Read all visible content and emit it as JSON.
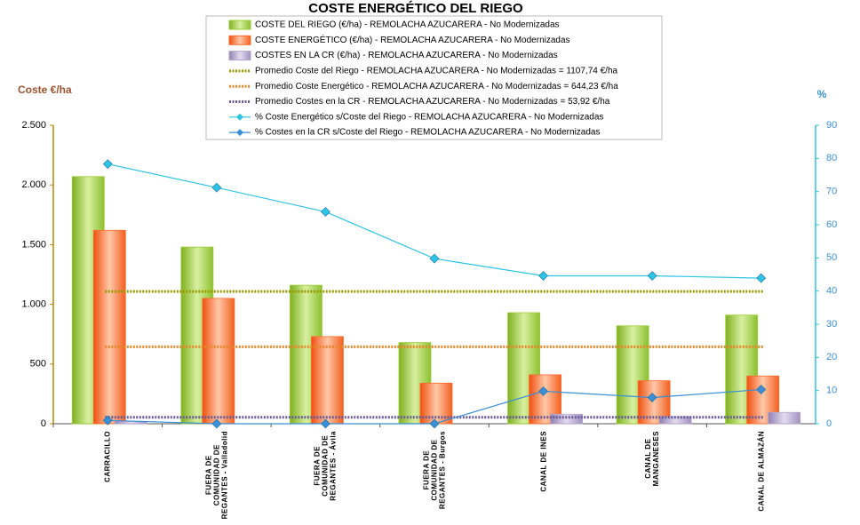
{
  "chart_data": {
    "type": "bar",
    "title": "COSTE ENERGÉTICO DEL RIEGO",
    "y_label": "Coste €/ha",
    "y2_label": "%",
    "categories": [
      "CARRACILLO",
      "FUERA DE\nCOMUNIDAD DE\nREGANTES - Valladolid",
      "FUERA DE\nCOMUNIDAD DE\nREGANTES - Ávila",
      "FUERA DE\nCOMUNIDAD DE\nREGANTES - Burgos",
      "CANAL DE INES",
      "CANAL DE\nMANGANESES",
      "CANAL DE ALMAZÁN"
    ],
    "ylim": [
      0,
      2500
    ],
    "yticks": [
      0,
      500,
      {
        "value": 1000,
        "label": "1.000"
      },
      {
        "value": 1500,
        "label": "1.500"
      },
      {
        "value": 2000,
        "label": "2.000"
      },
      {
        "value": 2500,
        "label": "2.500"
      }
    ],
    "y2lim": [
      0,
      90
    ],
    "y2ticks": [
      0,
      10,
      20,
      30,
      40,
      50,
      60,
      70,
      80,
      90
    ],
    "series": [
      {
        "name": "COSTE DEL RIEGO (€/ha) - REMOLACHA AZUCARERA - No Modernizadas",
        "type": "bar",
        "color": "#9acd32",
        "values": [
          2070,
          1480,
          1160,
          680,
          930,
          820,
          910
        ]
      },
      {
        "name": "COSTE ENERGÉTICO (€/ha) - REMOLACHA AZUCARERA - No Modernizadas",
        "type": "bar",
        "color": "#ff6a2a",
        "values": [
          1620,
          1050,
          730,
          340,
          410,
          360,
          400
        ]
      },
      {
        "name": "COSTES EN LA CR (€/ha) - REMOLACHA AZUCARERA - No Modernizadas",
        "type": "bar",
        "color": "#b4a6cc",
        "values": [
          20,
          0,
          0,
          0,
          80,
          60,
          95
        ]
      },
      {
        "name": "Promedio Coste del Riego - REMOLACHA AZUCARERA - No Modernizadas = 1107,74 €/ha",
        "type": "line",
        "color": "#9a9a00",
        "values": [
          1107.74,
          1107.74,
          1107.74,
          1107.74,
          1107.74,
          1107.74,
          1107.74
        ]
      },
      {
        "name": "Promedio Coste Energético - REMOLACHA AZUCARERA - No Modernizadas = 644,23 €/ha",
        "type": "line",
        "color": "#e8862a",
        "values": [
          644.23,
          644.23,
          644.23,
          644.23,
          644.23,
          644.23,
          644.23
        ]
      },
      {
        "name": "Promedio Costes en la CR - REMOLACHA AZUCARERA - No Modernizadas = 53,92 €/ha",
        "type": "line",
        "color": "#6a5a9a",
        "values": [
          53.92,
          53.92,
          53.92,
          53.92,
          53.92,
          53.92,
          53.92
        ]
      },
      {
        "name": "% Coste Energético s/Coste del Riego - REMOLACHA AZUCARERA - No Modernizadas",
        "type": "line",
        "axis": "y2",
        "color": "#2ec4e6",
        "values": [
          78.3,
          71.2,
          63.9,
          49.8,
          44.6,
          44.6,
          43.9
        ]
      },
      {
        "name": "% Costes en la CR s/Coste del Riego - REMOLACHA AZUCARERA - No Modernizadas",
        "type": "line",
        "axis": "y2",
        "color": "#3a8fd6",
        "values": [
          1.0,
          0,
          0,
          0,
          9.8,
          7.9,
          10.3
        ]
      }
    ]
  }
}
